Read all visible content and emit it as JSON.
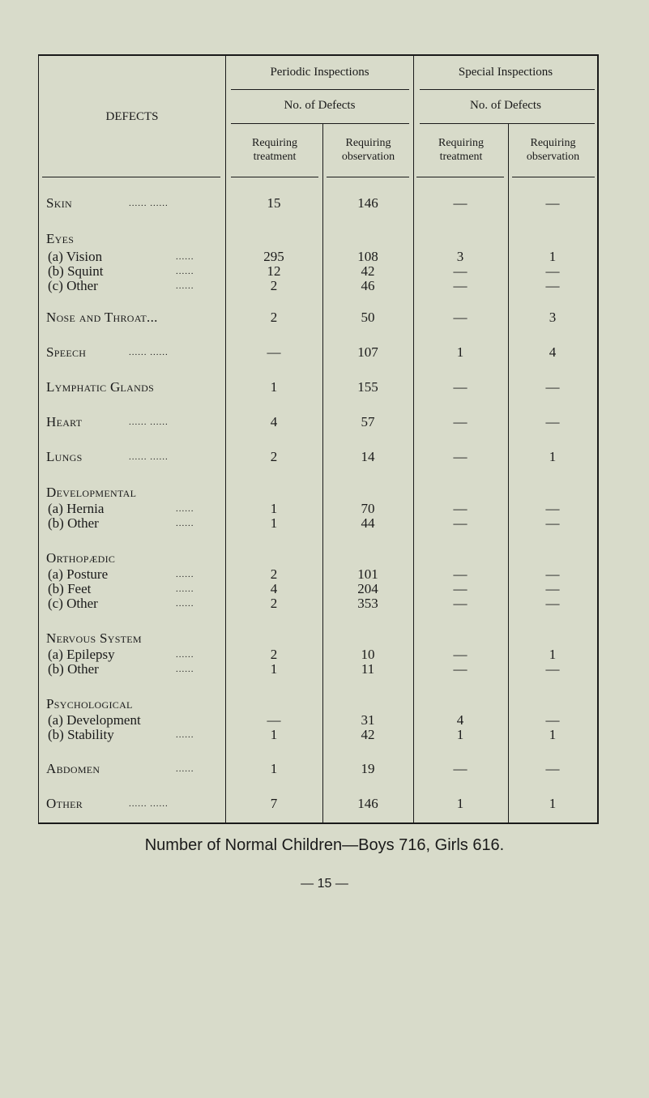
{
  "header": {
    "defects": "DEFECTS",
    "periodic": "Periodic Inspections",
    "special": "Special Inspections",
    "no_of_defects_periodic": "No. of Defects",
    "no_of_defects_special": "No. of Defects",
    "col1": "Requiring treatment",
    "col2": "Requiring observation",
    "col3": "Requiring treatment",
    "col4": "Requiring observation"
  },
  "rows": [
    {
      "label": "Skin",
      "kind": "item",
      "dots": "...... ......",
      "values": [
        "15",
        "146",
        "—",
        "—"
      ]
    },
    {
      "label": "Eyes",
      "kind": "heading",
      "dots": "",
      "values": [
        "",
        "",
        "",
        ""
      ]
    },
    {
      "label": "(a) Vision",
      "kind": "sub",
      "dots": "......",
      "values": [
        "295",
        "108",
        "3",
        "1"
      ]
    },
    {
      "label": "(b) Squint",
      "kind": "sub",
      "dots": "......",
      "values": [
        "12",
        "42",
        "—",
        "—"
      ]
    },
    {
      "label": "(c) Other",
      "kind": "sub",
      "dots": "......",
      "values": [
        "2",
        "46",
        "—",
        "—"
      ]
    },
    {
      "label": "Nose and Throat...",
      "kind": "item",
      "dots": "",
      "values": [
        "2",
        "50",
        "—",
        "3"
      ]
    },
    {
      "label": "Speech",
      "kind": "item",
      "dots": "...... ......",
      "values": [
        "—",
        "107",
        "1",
        "4"
      ]
    },
    {
      "label": "Lymphatic Glands",
      "kind": "item",
      "dots": "",
      "values": [
        "1",
        "155",
        "—",
        "—"
      ]
    },
    {
      "label": "Heart",
      "kind": "item",
      "dots": "...... ......",
      "values": [
        "4",
        "57",
        "—",
        "—"
      ]
    },
    {
      "label": "Lungs",
      "kind": "item",
      "dots": "...... ......",
      "values": [
        "2",
        "14",
        "—",
        "1"
      ]
    },
    {
      "label": "Developmental",
      "kind": "heading",
      "dots": "",
      "values": [
        "",
        "",
        "",
        ""
      ]
    },
    {
      "label": "(a) Hernia",
      "kind": "sub",
      "dots": "......",
      "values": [
        "1",
        "70",
        "—",
        "—"
      ]
    },
    {
      "label": "(b) Other",
      "kind": "sub",
      "dots": "......",
      "values": [
        "1",
        "44",
        "—",
        "—"
      ]
    },
    {
      "label": "Orthopædic",
      "kind": "heading",
      "dots": "",
      "values": [
        "",
        "",
        "",
        ""
      ]
    },
    {
      "label": "(a) Posture",
      "kind": "sub",
      "dots": "......",
      "values": [
        "2",
        "101",
        "—",
        "—"
      ]
    },
    {
      "label": "(b) Feet",
      "kind": "sub",
      "dots": "......",
      "values": [
        "4",
        "204",
        "—",
        "—"
      ]
    },
    {
      "label": "(c) Other",
      "kind": "sub",
      "dots": "......",
      "values": [
        "2",
        "353",
        "—",
        "—"
      ]
    },
    {
      "label": "Nervous System",
      "kind": "heading",
      "dots": "",
      "values": [
        "",
        "",
        "",
        ""
      ]
    },
    {
      "label": "(a) Epilepsy",
      "kind": "sub",
      "dots": "......",
      "values": [
        "2",
        "10",
        "—",
        "1"
      ]
    },
    {
      "label": "(b) Other",
      "kind": "sub",
      "dots": "......",
      "values": [
        "1",
        "11",
        "—",
        "—"
      ]
    },
    {
      "label": "Psychological",
      "kind": "heading",
      "dots": "",
      "values": [
        "",
        "",
        "",
        ""
      ]
    },
    {
      "label": "(a) Development",
      "kind": "sub",
      "dots": "",
      "values": [
        "—",
        "31",
        "4",
        "—"
      ]
    },
    {
      "label": "(b) Stability",
      "kind": "sub",
      "dots": "......",
      "values": [
        "1",
        "42",
        "1",
        "1"
      ]
    },
    {
      "label": "Abdomen",
      "kind": "item",
      "dots": "......",
      "values": [
        "1",
        "19",
        "—",
        "—"
      ]
    },
    {
      "label": "Other",
      "kind": "item",
      "dots": "...... ......",
      "values": [
        "7",
        "146",
        "1",
        "1"
      ]
    }
  ],
  "caption": "Number of Normal Children—Boys 716, Girls 616.",
  "page_number": "— 15 —"
}
